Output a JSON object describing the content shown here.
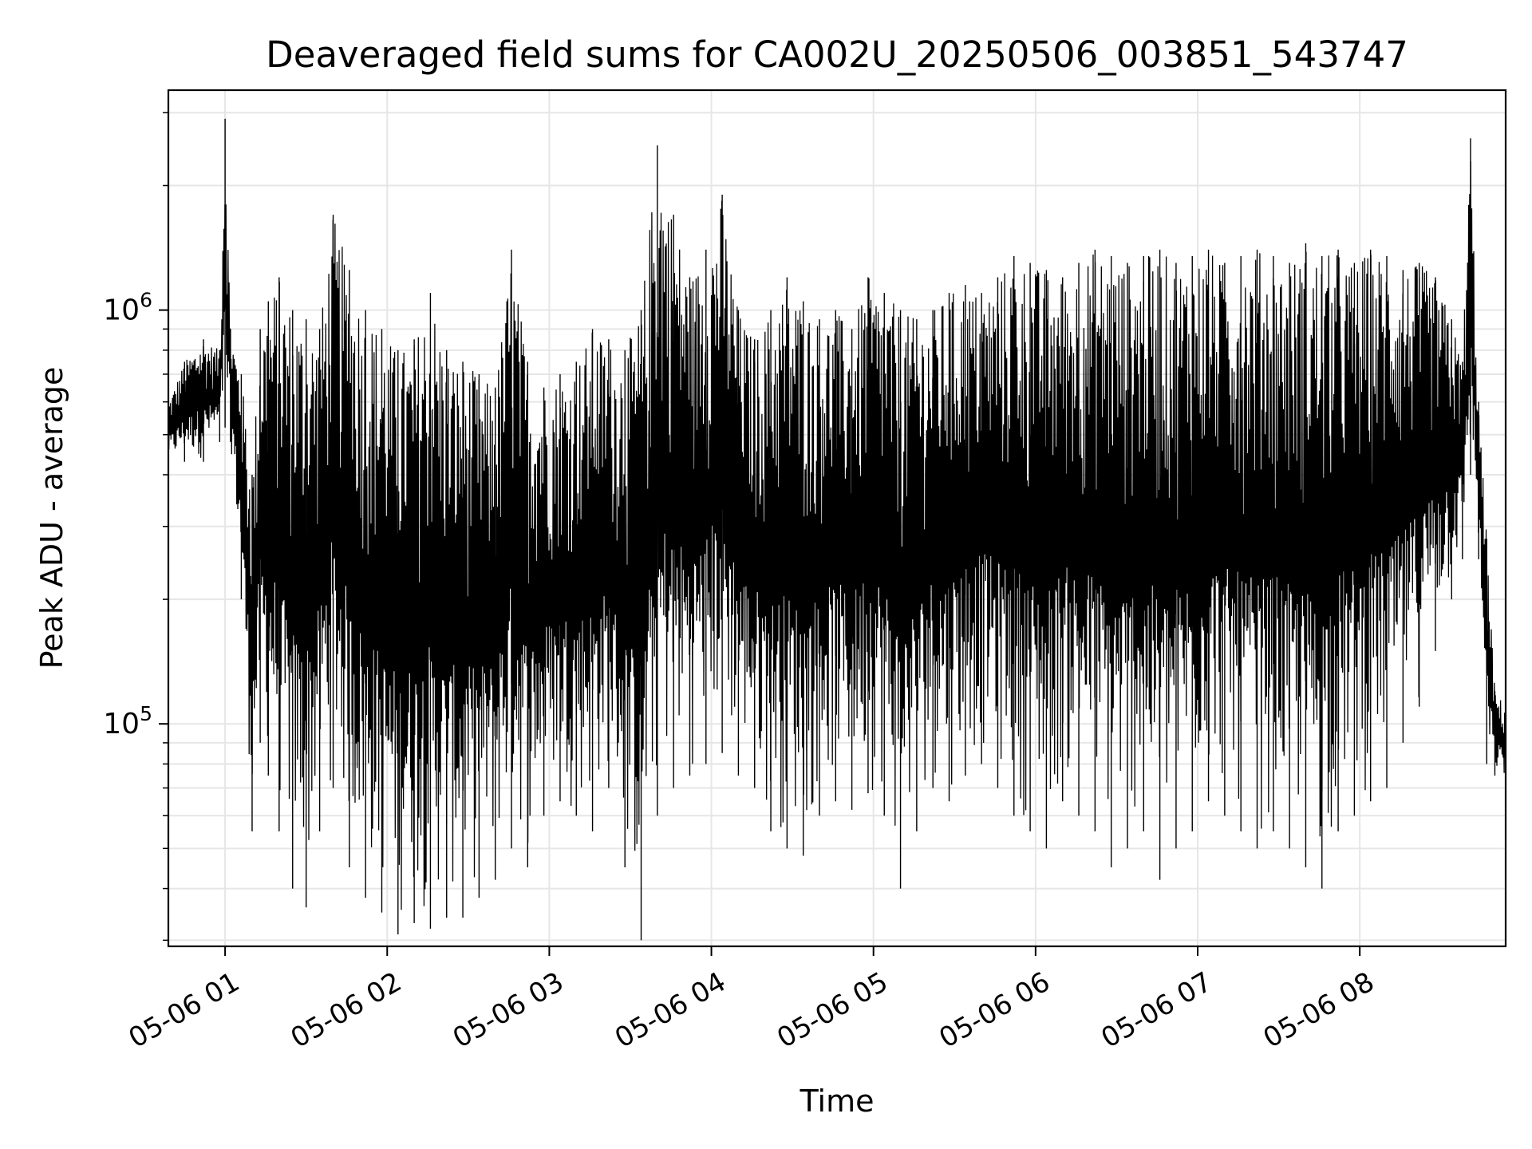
{
  "chart_data": {
    "type": "line",
    "title": "Deaveraged field sums for CA002U_20250506_003851_543747",
    "xlabel": "Time",
    "ylabel": "Peak ADU - average",
    "yscale": "log",
    "ylim": [
      29000,
      3400000
    ],
    "xlim": [
      "2025-05-06 00:39",
      "2025-05-06 08:54"
    ],
    "grid": true,
    "x_ticks": [
      {
        "value": "2025-05-06 01:00",
        "label": "05-06 01"
      },
      {
        "value": "2025-05-06 02:00",
        "label": "05-06 02"
      },
      {
        "value": "2025-05-06 03:00",
        "label": "05-06 03"
      },
      {
        "value": "2025-05-06 04:00",
        "label": "05-06 04"
      },
      {
        "value": "2025-05-06 05:00",
        "label": "05-06 05"
      },
      {
        "value": "2025-05-06 06:00",
        "label": "05-06 06"
      },
      {
        "value": "2025-05-06 07:00",
        "label": "05-06 07"
      },
      {
        "value": "2025-05-06 08:00",
        "label": "05-06 08"
      }
    ],
    "y_ticks": [
      {
        "value": 100000,
        "base": "10",
        "exp": "5"
      },
      {
        "value": 1000000,
        "base": "10",
        "exp": "6"
      }
    ],
    "series": [
      {
        "color": "#000000",
        "x": [
          "2025-05-06 00:39",
          "2025-05-06 00:45",
          "2025-05-06 00:52",
          "2025-05-06 00:58",
          "2025-05-06 01:00",
          "2025-05-06 01:02",
          "2025-05-06 01:06",
          "2025-05-06 01:10",
          "2025-05-06 01:13",
          "2025-05-06 01:16",
          "2025-05-06 01:20",
          "2025-05-06 01:25",
          "2025-05-06 01:30",
          "2025-05-06 01:35",
          "2025-05-06 01:40",
          "2025-05-06 01:46",
          "2025-05-06 01:52",
          "2025-05-06 01:58",
          "2025-05-06 02:04",
          "2025-05-06 02:10",
          "2025-05-06 02:16",
          "2025-05-06 02:22",
          "2025-05-06 02:28",
          "2025-05-06 02:34",
          "2025-05-06 02:40",
          "2025-05-06 02:46",
          "2025-05-06 02:52",
          "2025-05-06 02:58",
          "2025-05-06 03:04",
          "2025-05-06 03:10",
          "2025-05-06 03:16",
          "2025-05-06 03:22",
          "2025-05-06 03:28",
          "2025-05-06 03:34",
          "2025-05-06 03:40",
          "2025-05-06 03:46",
          "2025-05-06 03:52",
          "2025-05-06 03:58",
          "2025-05-06 04:04",
          "2025-05-06 04:10",
          "2025-05-06 04:16",
          "2025-05-06 04:22",
          "2025-05-06 04:28",
          "2025-05-06 04:34",
          "2025-05-06 04:40",
          "2025-05-06 04:46",
          "2025-05-06 04:52",
          "2025-05-06 04:58",
          "2025-05-06 05:04",
          "2025-05-06 05:10",
          "2025-05-06 05:16",
          "2025-05-06 05:22",
          "2025-05-06 05:28",
          "2025-05-06 05:34",
          "2025-05-06 05:40",
          "2025-05-06 05:46",
          "2025-05-06 05:52",
          "2025-05-06 05:58",
          "2025-05-06 06:04",
          "2025-05-06 06:10",
          "2025-05-06 06:16",
          "2025-05-06 06:22",
          "2025-05-06 06:28",
          "2025-05-06 06:34",
          "2025-05-06 06:40",
          "2025-05-06 06:46",
          "2025-05-06 06:52",
          "2025-05-06 06:58",
          "2025-05-06 07:04",
          "2025-05-06 07:10",
          "2025-05-06 07:16",
          "2025-05-06 07:22",
          "2025-05-06 07:28",
          "2025-05-06 07:34",
          "2025-05-06 07:40",
          "2025-05-06 07:46",
          "2025-05-06 07:52",
          "2025-05-06 07:58",
          "2025-05-06 08:04",
          "2025-05-06 08:10",
          "2025-05-06 08:16",
          "2025-05-06 08:22",
          "2025-05-06 08:28",
          "2025-05-06 08:34",
          "2025-05-06 08:38",
          "2025-05-06 08:41",
          "2025-05-06 08:44",
          "2025-05-06 08:47",
          "2025-05-06 08:50",
          "2025-05-06 08:54"
        ],
        "y_upper": [
          600000,
          750000,
          850000,
          800000,
          2900000,
          900000,
          700000,
          400000,
          900000,
          1050000,
          1200000,
          1000000,
          950000,
          900000,
          1700000,
          1250000,
          1000000,
          900000,
          800000,
          850000,
          1100000,
          800000,
          750000,
          700000,
          650000,
          1400000,
          750000,
          650000,
          700000,
          750000,
          900000,
          850000,
          800000,
          1000000,
          2500000,
          1700000,
          1200000,
          1400000,
          1900000,
          1000000,
          850000,
          1000000,
          1200000,
          1050000,
          950000,
          1000000,
          900000,
          1200000,
          1100000,
          1000000,
          950000,
          1000000,
          1100000,
          1150000,
          1100000,
          1200000,
          1350000,
          1300000,
          1250000,
          1200000,
          1300000,
          1400000,
          1350000,
          1300000,
          1350000,
          1400000,
          1300000,
          1350000,
          1400000,
          1300000,
          1350000,
          1400000,
          1350000,
          1300000,
          1450000,
          1350000,
          1400000,
          1300000,
          1400000,
          1350000,
          1250000,
          1300000,
          1200000,
          950000,
          750000,
          2600000,
          600000,
          280000,
          120000,
          110000
        ],
        "y_lower": [
          420000,
          430000,
          430000,
          480000,
          520000,
          480000,
          200000,
          55000,
          90000,
          75000,
          55000,
          40000,
          36000,
          55000,
          70000,
          45000,
          38000,
          35000,
          31000,
          33000,
          32000,
          34000,
          34000,
          38000,
          42000,
          50000,
          45000,
          60000,
          65000,
          60000,
          55000,
          70000,
          45000,
          30000,
          60000,
          70000,
          75000,
          80000,
          85000,
          75000,
          70000,
          55000,
          50000,
          48000,
          60000,
          65000,
          62000,
          68000,
          60000,
          40000,
          55000,
          70000,
          65000,
          75000,
          80000,
          70000,
          60000,
          55000,
          50000,
          65000,
          60000,
          55000,
          45000,
          50000,
          55000,
          42000,
          50000,
          55000,
          65000,
          60000,
          55000,
          50000,
          55000,
          50000,
          45000,
          40000,
          55000,
          60000,
          65000,
          70000,
          90000,
          110000,
          150000,
          200000,
          250000,
          400000,
          250000,
          80000,
          75000,
          70000
        ]
      }
    ]
  }
}
